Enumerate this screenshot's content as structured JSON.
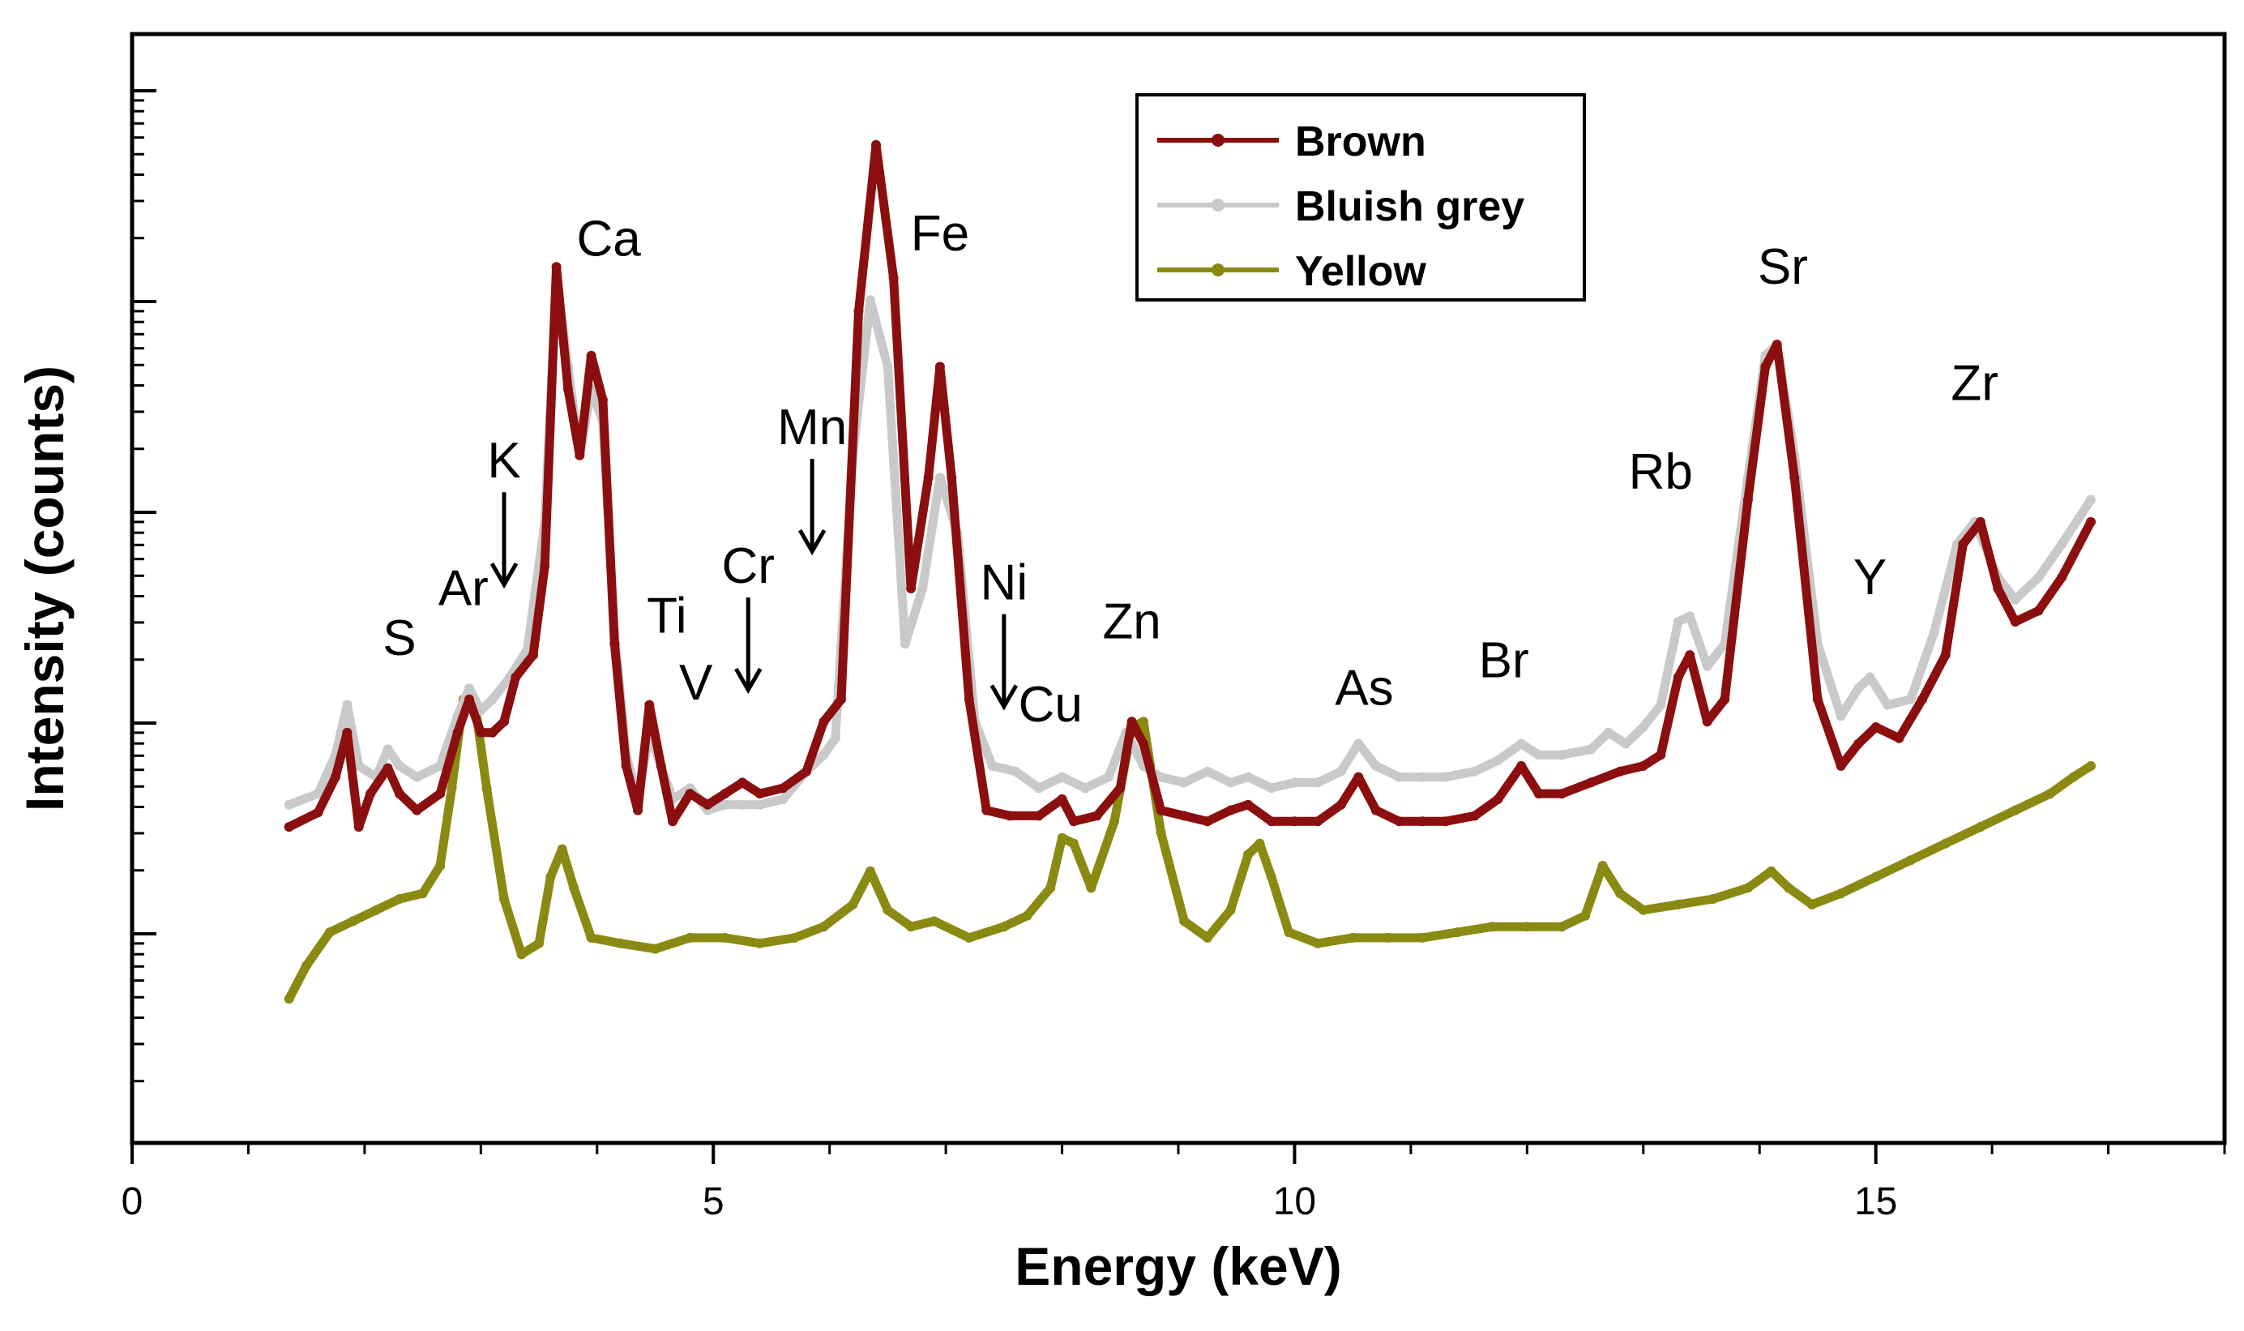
{
  "chart_data": {
    "type": "line",
    "title": "",
    "xlabel": "Energy (keV)",
    "ylabel": "Intensity (counts)",
    "xlim": [
      0,
      18
    ],
    "ylim": [
      0,
      100
    ],
    "y_scale_note": "logarithmic, unlabeled tick marks",
    "x_ticks": [
      {
        "value": 0,
        "label": "0"
      },
      {
        "value": 5,
        "label": "5"
      },
      {
        "value": 10,
        "label": "10"
      },
      {
        "value": 15,
        "label": "15"
      }
    ],
    "legend": {
      "position": "top-right",
      "entries": [
        {
          "name": "Brown",
          "color": "#8b0f0f"
        },
        {
          "name": "Bluish grey",
          "color": "#c9c9c9"
        },
        {
          "name": "Yellow",
          "color": "#8a8a12"
        }
      ]
    },
    "series": [
      {
        "name": "Brown",
        "color": "#8b0f0f",
        "points": [
          [
            1.35,
            28.5
          ],
          [
            1.6,
            29.8
          ],
          [
            1.75,
            33
          ],
          [
            1.85,
            37
          ],
          [
            1.95,
            28.5
          ],
          [
            2.05,
            31.5
          ],
          [
            2.2,
            33.8
          ],
          [
            2.3,
            31.5
          ],
          [
            2.45,
            30
          ],
          [
            2.65,
            31.5
          ],
          [
            2.8,
            37
          ],
          [
            2.9,
            40
          ],
          [
            3.0,
            37
          ],
          [
            3.1,
            37
          ],
          [
            3.2,
            38
          ],
          [
            3.3,
            42
          ],
          [
            3.45,
            44
          ],
          [
            3.55,
            52
          ],
          [
            3.65,
            79
          ],
          [
            3.75,
            68
          ],
          [
            3.85,
            62
          ],
          [
            3.95,
            71
          ],
          [
            4.05,
            67
          ],
          [
            4.15,
            45
          ],
          [
            4.25,
            34
          ],
          [
            4.35,
            30
          ],
          [
            4.45,
            39.5
          ],
          [
            4.55,
            34
          ],
          [
            4.65,
            29
          ],
          [
            4.8,
            31.5
          ],
          [
            4.95,
            30.5
          ],
          [
            5.1,
            31.5
          ],
          [
            5.25,
            32.5
          ],
          [
            5.4,
            31.5
          ],
          [
            5.6,
            32
          ],
          [
            5.8,
            33.5
          ],
          [
            5.95,
            38
          ],
          [
            6.1,
            40
          ],
          [
            6.25,
            75
          ],
          [
            6.4,
            90
          ],
          [
            6.55,
            78
          ],
          [
            6.7,
            50
          ],
          [
            6.85,
            60
          ],
          [
            6.95,
            70
          ],
          [
            7.05,
            60
          ],
          [
            7.2,
            40
          ],
          [
            7.35,
            30
          ],
          [
            7.55,
            29.5
          ],
          [
            7.8,
            29.5
          ],
          [
            8.0,
            31
          ],
          [
            8.1,
            29
          ],
          [
            8.3,
            29.5
          ],
          [
            8.5,
            32
          ],
          [
            8.6,
            38
          ],
          [
            8.7,
            36
          ],
          [
            8.85,
            30
          ],
          [
            9.05,
            29.5
          ],
          [
            9.25,
            29
          ],
          [
            9.45,
            30
          ],
          [
            9.6,
            30.5
          ],
          [
            9.8,
            29
          ],
          [
            10.0,
            29
          ],
          [
            10.2,
            29
          ],
          [
            10.4,
            30.5
          ],
          [
            10.55,
            33
          ],
          [
            10.7,
            30
          ],
          [
            10.9,
            29
          ],
          [
            11.1,
            29
          ],
          [
            11.3,
            29
          ],
          [
            11.55,
            29.5
          ],
          [
            11.75,
            31
          ],
          [
            11.95,
            34
          ],
          [
            12.1,
            31.5
          ],
          [
            12.3,
            31.5
          ],
          [
            12.55,
            32.5
          ],
          [
            12.8,
            33.5
          ],
          [
            13.0,
            34
          ],
          [
            13.15,
            35
          ],
          [
            13.3,
            42
          ],
          [
            13.4,
            44
          ],
          [
            13.55,
            38
          ],
          [
            13.7,
            40
          ],
          [
            13.9,
            58
          ],
          [
            14.05,
            70
          ],
          [
            14.15,
            72
          ],
          [
            14.3,
            60
          ],
          [
            14.5,
            40
          ],
          [
            14.7,
            34
          ],
          [
            14.85,
            36
          ],
          [
            15.0,
            37.5
          ],
          [
            15.2,
            36.5
          ],
          [
            15.4,
            40
          ],
          [
            15.6,
            44
          ],
          [
            15.75,
            54
          ],
          [
            15.9,
            56
          ],
          [
            16.05,
            50
          ],
          [
            16.2,
            47
          ],
          [
            16.4,
            48
          ],
          [
            16.6,
            51
          ],
          [
            16.85,
            56
          ]
        ]
      },
      {
        "name": "Bluish grey",
        "color": "#c9c9c9",
        "points": [
          [
            1.35,
            30.5
          ],
          [
            1.6,
            31.5
          ],
          [
            1.75,
            35
          ],
          [
            1.85,
            39.5
          ],
          [
            1.95,
            34
          ],
          [
            2.1,
            33
          ],
          [
            2.2,
            35.5
          ],
          [
            2.3,
            34
          ],
          [
            2.45,
            33
          ],
          [
            2.65,
            34
          ],
          [
            2.8,
            38.5
          ],
          [
            2.9,
            41
          ],
          [
            3.0,
            39
          ],
          [
            3.1,
            40
          ],
          [
            3.25,
            42
          ],
          [
            3.4,
            44.5
          ],
          [
            3.55,
            56
          ],
          [
            3.65,
            78
          ],
          [
            3.75,
            70
          ],
          [
            3.85,
            62
          ],
          [
            3.95,
            68
          ],
          [
            4.05,
            65
          ],
          [
            4.15,
            46
          ],
          [
            4.25,
            35
          ],
          [
            4.35,
            31
          ],
          [
            4.45,
            37
          ],
          [
            4.55,
            34
          ],
          [
            4.65,
            31
          ],
          [
            4.8,
            32
          ],
          [
            4.95,
            30
          ],
          [
            5.1,
            30.5
          ],
          [
            5.25,
            30.5
          ],
          [
            5.4,
            30.5
          ],
          [
            5.6,
            31
          ],
          [
            5.8,
            33.5
          ],
          [
            5.95,
            35
          ],
          [
            6.05,
            36.5
          ],
          [
            6.2,
            62
          ],
          [
            6.35,
            76
          ],
          [
            6.5,
            70
          ],
          [
            6.65,
            45
          ],
          [
            6.8,
            50
          ],
          [
            6.95,
            60
          ],
          [
            7.1,
            55
          ],
          [
            7.25,
            38
          ],
          [
            7.4,
            34
          ],
          [
            7.6,
            33.5
          ],
          [
            7.8,
            32
          ],
          [
            8.0,
            33
          ],
          [
            8.2,
            32
          ],
          [
            8.4,
            33
          ],
          [
            8.55,
            37
          ],
          [
            8.7,
            34
          ],
          [
            8.85,
            33
          ],
          [
            9.05,
            32.5
          ],
          [
            9.25,
            33.5
          ],
          [
            9.45,
            32.5
          ],
          [
            9.6,
            33
          ],
          [
            9.8,
            32
          ],
          [
            10.0,
            32.5
          ],
          [
            10.2,
            32.5
          ],
          [
            10.4,
            33.5
          ],
          [
            10.55,
            36
          ],
          [
            10.7,
            34
          ],
          [
            10.9,
            33
          ],
          [
            11.1,
            33
          ],
          [
            11.3,
            33
          ],
          [
            11.55,
            33.5
          ],
          [
            11.75,
            34.5
          ],
          [
            11.95,
            36
          ],
          [
            12.1,
            35
          ],
          [
            12.3,
            35
          ],
          [
            12.55,
            35.5
          ],
          [
            12.7,
            37
          ],
          [
            12.85,
            36
          ],
          [
            13.0,
            37.5
          ],
          [
            13.15,
            39.5
          ],
          [
            13.3,
            47
          ],
          [
            13.4,
            47.5
          ],
          [
            13.55,
            43
          ],
          [
            13.7,
            45
          ],
          [
            13.9,
            60
          ],
          [
            14.05,
            71
          ],
          [
            14.15,
            72
          ],
          [
            14.3,
            62
          ],
          [
            14.5,
            45
          ],
          [
            14.7,
            38.5
          ],
          [
            14.85,
            41
          ],
          [
            14.95,
            42
          ],
          [
            15.1,
            39.5
          ],
          [
            15.3,
            40
          ],
          [
            15.5,
            46
          ],
          [
            15.7,
            54
          ],
          [
            15.85,
            56
          ],
          [
            16.05,
            51
          ],
          [
            16.2,
            49
          ],
          [
            16.4,
            51
          ],
          [
            16.6,
            54
          ],
          [
            16.85,
            58
          ]
        ]
      },
      {
        "name": "Yellow",
        "color": "#8a8a12",
        "points": [
          [
            1.35,
            13
          ],
          [
            1.5,
            16
          ],
          [
            1.7,
            19
          ],
          [
            1.9,
            20
          ],
          [
            2.1,
            21
          ],
          [
            2.3,
            22
          ],
          [
            2.5,
            22.5
          ],
          [
            2.65,
            25
          ],
          [
            2.75,
            32
          ],
          [
            2.85,
            40
          ],
          [
            2.95,
            39.5
          ],
          [
            3.05,
            32
          ],
          [
            3.2,
            22
          ],
          [
            3.35,
            17
          ],
          [
            3.5,
            18
          ],
          [
            3.6,
            24
          ],
          [
            3.7,
            26.5
          ],
          [
            3.8,
            23
          ],
          [
            3.95,
            18.5
          ],
          [
            4.2,
            18
          ],
          [
            4.5,
            17.5
          ],
          [
            4.8,
            18.5
          ],
          [
            5.1,
            18.5
          ],
          [
            5.4,
            18
          ],
          [
            5.7,
            18.5
          ],
          [
            5.95,
            19.5
          ],
          [
            6.2,
            21.5
          ],
          [
            6.35,
            24.5
          ],
          [
            6.5,
            21
          ],
          [
            6.7,
            19.5
          ],
          [
            6.9,
            20
          ],
          [
            7.2,
            18.5
          ],
          [
            7.5,
            19.5
          ],
          [
            7.7,
            20.5
          ],
          [
            7.9,
            23
          ],
          [
            8.0,
            27.5
          ],
          [
            8.1,
            27
          ],
          [
            8.25,
            23
          ],
          [
            8.45,
            29
          ],
          [
            8.6,
            37.5
          ],
          [
            8.7,
            38
          ],
          [
            8.85,
            28
          ],
          [
            9.05,
            20
          ],
          [
            9.25,
            18.5
          ],
          [
            9.45,
            21
          ],
          [
            9.6,
            26
          ],
          [
            9.7,
            27
          ],
          [
            9.8,
            24
          ],
          [
            9.95,
            19
          ],
          [
            10.2,
            18
          ],
          [
            10.5,
            18.5
          ],
          [
            10.8,
            18.5
          ],
          [
            11.1,
            18.5
          ],
          [
            11.4,
            19
          ],
          [
            11.7,
            19.5
          ],
          [
            12.0,
            19.5
          ],
          [
            12.3,
            19.5
          ],
          [
            12.5,
            20.5
          ],
          [
            12.65,
            25
          ],
          [
            12.8,
            22.5
          ],
          [
            13.0,
            21
          ],
          [
            13.3,
            21.5
          ],
          [
            13.6,
            22
          ],
          [
            13.9,
            23
          ],
          [
            14.1,
            24.5
          ],
          [
            14.25,
            23
          ],
          [
            14.45,
            21.5
          ],
          [
            14.7,
            22.5
          ],
          [
            15.0,
            24
          ],
          [
            15.3,
            25.5
          ],
          [
            15.6,
            27
          ],
          [
            15.9,
            28.5
          ],
          [
            16.2,
            30
          ],
          [
            16.5,
            31.5
          ],
          [
            16.7,
            33
          ],
          [
            16.85,
            34
          ]
        ]
      }
    ],
    "annotations": [
      {
        "label": "S",
        "x": 2.3,
        "y": 44
      },
      {
        "label": "Ar",
        "x": 2.85,
        "y": 48.5
      },
      {
        "label": "K",
        "x": 3.2,
        "y": 60,
        "arrow": true
      },
      {
        "label": "Ca",
        "x": 4.1,
        "y": 80
      },
      {
        "label": "Ti",
        "x": 4.6,
        "y": 46
      },
      {
        "label": "V",
        "x": 4.85,
        "y": 40
      },
      {
        "label": "Cr",
        "x": 5.3,
        "y": 50.5,
        "arrow": true
      },
      {
        "label": "Mn",
        "x": 5.85,
        "y": 63,
        "arrow": true
      },
      {
        "label": "Fe",
        "x": 6.95,
        "y": 80.5
      },
      {
        "label": "Ni",
        "x": 7.5,
        "y": 49,
        "arrow": true
      },
      {
        "label": "Cu",
        "x": 7.9,
        "y": 38
      },
      {
        "label": "Zn",
        "x": 8.6,
        "y": 45.5
      },
      {
        "label": "As",
        "x": 10.6,
        "y": 39.5
      },
      {
        "label": "Br",
        "x": 11.8,
        "y": 42
      },
      {
        "label": "Rb",
        "x": 13.15,
        "y": 59
      },
      {
        "label": "Sr",
        "x": 14.2,
        "y": 77.5
      },
      {
        "label": "Y",
        "x": 14.95,
        "y": 49.5
      },
      {
        "label": "Zr",
        "x": 15.85,
        "y": 67
      }
    ]
  }
}
